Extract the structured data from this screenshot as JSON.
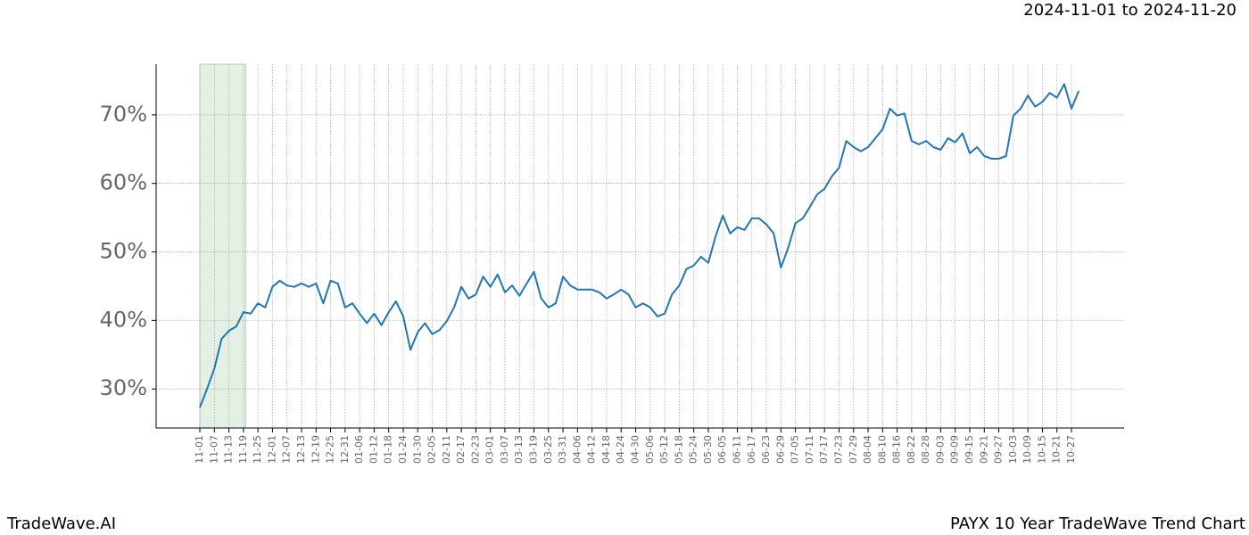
{
  "chart_data": {
    "type": "line",
    "title": "PAYX 10 Year TradeWave Trend Chart",
    "date_range": "2024-11-01 to 2024-11-20",
    "watermark": "TradeWave.AI",
    "color": "#1f77b4",
    "highlight": [
      0,
      6.3
    ],
    "highlight_color": "#e3f0e3",
    "grid": true,
    "ylim": [
      24.3,
      77.4
    ],
    "yticks": [
      {
        "value": 30,
        "label": "30%"
      },
      {
        "value": 40,
        "label": "40%"
      },
      {
        "value": 50,
        "label": "50%"
      },
      {
        "value": 60,
        "label": "60%"
      },
      {
        "value": 70,
        "label": "70%"
      }
    ],
    "categories": [
      "11-01",
      null,
      "11-07",
      null,
      "11-13",
      null,
      "11-19",
      null,
      "11-25",
      null,
      "12-01",
      null,
      "12-07",
      null,
      "12-13",
      null,
      "12-19",
      null,
      "12-25",
      null,
      "12-31",
      null,
      "01-06",
      null,
      "01-12",
      null,
      "01-18",
      null,
      "01-24",
      null,
      "01-30",
      null,
      "02-05",
      null,
      "02-11",
      null,
      "02-17",
      null,
      "02-23",
      null,
      "03-01",
      null,
      "03-07",
      null,
      "03-13",
      null,
      "03-19",
      null,
      "03-25",
      null,
      "03-31",
      null,
      "04-06",
      null,
      "04-12",
      null,
      "04-18",
      null,
      "04-24",
      null,
      "04-30",
      null,
      "05-06",
      null,
      "05-12",
      null,
      "05-18",
      null,
      "05-24",
      null,
      "05-30",
      null,
      "06-05",
      null,
      "06-11",
      null,
      "06-17",
      null,
      "06-23",
      null,
      "06-29",
      null,
      "07-05",
      null,
      "07-11",
      null,
      "07-17",
      null,
      "07-23",
      null,
      "07-29",
      null,
      "08-04",
      null,
      "08-10",
      null,
      "08-16",
      null,
      "08-22",
      null,
      "08-28",
      null,
      "09-03",
      null,
      "09-09",
      null,
      "09-15",
      null,
      "09-21",
      null,
      "09-27",
      null,
      "10-03",
      null,
      "10-09",
      null,
      "10-15",
      null,
      "10-21",
      null,
      "10-27",
      null
    ],
    "values": [
      27.3,
      30,
      33,
      37.3,
      38.5,
      39.1,
      41.2,
      41,
      42.5,
      41.9,
      44.9,
      45.8,
      45.1,
      44.9,
      45.4,
      44.9,
      45.4,
      42.5,
      45.8,
      45.4,
      41.9,
      42.5,
      41,
      39.6,
      41,
      39.3,
      41.2,
      42.8,
      40.6,
      35.7,
      38.3,
      39.6,
      38,
      38.6,
      39.9,
      41.9,
      44.9,
      43.2,
      43.8,
      46.4,
      44.9,
      46.7,
      44.1,
      45.1,
      43.6,
      45.4,
      47.1,
      43.2,
      41.9,
      42.5,
      46.4,
      45.1,
      44.5,
      44.5,
      44.5,
      44.1,
      43.2,
      43.8,
      44.5,
      43.8,
      41.9,
      42.5,
      41.9,
      40.6,
      41,
      43.8,
      45.1,
      47.5,
      48,
      49.3,
      48.4,
      52.3,
      55.3,
      52.7,
      53.6,
      53.2,
      54.9,
      54.9,
      54,
      52.7,
      47.7,
      50.6,
      54.2,
      54.9,
      56.6,
      58.4,
      59.2,
      61,
      62.3,
      66.2,
      65.3,
      64.7,
      65.3,
      66.6,
      67.9,
      70.9,
      69.9,
      70.2,
      66.2,
      65.7,
      66.2,
      65.3,
      64.9,
      66.6,
      66,
      67.3,
      64.4,
      65.3,
      64,
      63.6,
      63.6,
      64,
      69.9,
      70.9,
      72.8,
      71.2,
      71.9,
      73.2,
      72.5,
      74.5,
      70.9,
      73.5
    ]
  }
}
